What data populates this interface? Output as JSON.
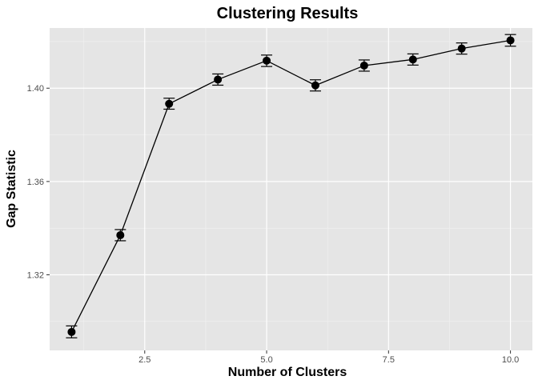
{
  "chart_data": {
    "type": "line",
    "title": "Clustering Results",
    "xlabel": "Number of Clusters",
    "ylabel": "Gap Statistic",
    "xlim": [
      0.55,
      10.45
    ],
    "ylim": [
      1.2876,
      1.4258
    ],
    "x_ticks": [
      2.5,
      5.0,
      7.5,
      10.0
    ],
    "x_tick_labels": [
      "2.5",
      "5.0",
      "7.5",
      "10.0"
    ],
    "y_ticks": [
      1.32,
      1.36,
      1.4
    ],
    "y_tick_labels": [
      "1.32",
      "1.36",
      "1.40"
    ],
    "grid": true,
    "legend": "none",
    "colors": {
      "panel": "#e5e5e5",
      "grid": "#ffffff",
      "series": "#000000",
      "tick_text": "#4d4d4d"
    },
    "series": [
      {
        "x": [
          1,
          2,
          3,
          4,
          5,
          6,
          7,
          8,
          9,
          10
        ],
        "y": [
          1.2955,
          1.337,
          1.3933,
          1.4037,
          1.4118,
          1.4012,
          1.4097,
          1.4123,
          1.417,
          1.4205
        ],
        "ymin": [
          1.293,
          1.3346,
          1.391,
          1.4013,
          1.4093,
          1.3988,
          1.4073,
          1.4099,
          1.4146,
          1.418
        ],
        "ymax": [
          1.2981,
          1.3394,
          1.3957,
          1.4061,
          1.4142,
          1.4036,
          1.4121,
          1.4147,
          1.4194,
          1.423
        ]
      }
    ]
  }
}
